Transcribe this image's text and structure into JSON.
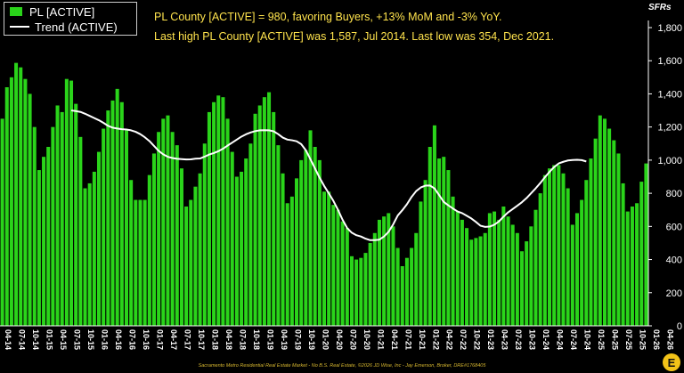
{
  "headline": {
    "line1": "PL County [ACTIVE] = 980, favoring Buyers, +13% MoM and -3% YoY.",
    "line2": "Last high PL County [ACTIVE] was 1,587, Jul 2014. Last low was 354, Dec 2021."
  },
  "legend": {
    "bar_label": "PL [ACTIVE]",
    "line_label": "Trend (ACTIVE)"
  },
  "unit_label": "SFRs",
  "footer": "Sacramento Metro Residential Real Estate Market - No B.S. Real Estate, ©2026 JD Wise, Inc - Jay Emerson, Broker, DRE#1768405",
  "logo_letter": "E",
  "colors": {
    "bar": "#2ad41a",
    "trend": "#ffffff",
    "headline": "#ffe34d",
    "background": "#000000"
  },
  "chart_data": {
    "type": "bar",
    "title": "",
    "xlabel": "",
    "ylabel": "SFRs",
    "ylim": [
      0,
      1800
    ],
    "yticks": [
      0,
      200,
      400,
      600,
      800,
      1000,
      1200,
      1400,
      1600,
      1800
    ],
    "ytick_labels": [
      "0",
      "200",
      "400",
      "600",
      "800",
      "1,000",
      "1,200",
      "1,400",
      "1,600",
      "1,800"
    ],
    "grid": false,
    "legend_position": "top-left",
    "x_tick_labels": [
      "04-14",
      "07-14",
      "10-14",
      "01-15",
      "04-15",
      "07-15",
      "10-15",
      "01-16",
      "04-16",
      "07-16",
      "10-16",
      "01-17",
      "04-17",
      "07-17",
      "10-17",
      "01-18",
      "04-18",
      "07-18",
      "10-18",
      "01-19",
      "04-19",
      "07-19",
      "10-19",
      "01-20",
      "04-20",
      "07-20",
      "10-20",
      "01-21",
      "04-21",
      "07-21",
      "10-21",
      "01-22",
      "04-22",
      "07-22",
      "10-22",
      "01-23",
      "04-23",
      "07-23",
      "10-23",
      "01-24",
      "04-24",
      "07-24",
      "10-24",
      "01-25",
      "04-25",
      "07-25",
      "10-25",
      "01-26",
      "04-26"
    ],
    "series": [
      {
        "name": "PL [ACTIVE]",
        "type": "bar",
        "values": [
          1250,
          1440,
          1500,
          1587,
          1560,
          1490,
          1400,
          1200,
          940,
          1020,
          1080,
          1200,
          1330,
          1290,
          1490,
          1480,
          1340,
          1140,
          830,
          860,
          930,
          1050,
          1190,
          1300,
          1360,
          1430,
          1350,
          1180,
          880,
          760,
          760,
          760,
          910,
          1040,
          1170,
          1250,
          1270,
          1170,
          1090,
          950,
          720,
          760,
          840,
          920,
          1100,
          1290,
          1350,
          1390,
          1380,
          1250,
          1050,
          900,
          930,
          1010,
          1100,
          1280,
          1330,
          1380,
          1410,
          1290,
          1090,
          920,
          740,
          780,
          890,
          1000,
          1060,
          1180,
          1080,
          1000,
          810,
          810,
          730,
          700,
          630,
          590,
          420,
          400,
          410,
          440,
          500,
          560,
          640,
          660,
          680,
          600,
          470,
          360,
          410,
          470,
          560,
          750,
          880,
          1080,
          1210,
          1010,
          1020,
          940,
          780,
          690,
          640,
          590,
          520,
          530,
          540,
          560,
          680,
          690,
          640,
          720,
          660,
          610,
          560,
          450,
          510,
          600,
          700,
          800,
          910,
          950,
          970,
          970,
          920,
          830,
          610,
          680,
          760,
          880,
          1010,
          1130,
          1270,
          1250,
          1190,
          1120,
          1040,
          860,
          690,
          720,
          740,
          870,
          980
        ]
      },
      {
        "name": "Trend (ACTIVE)",
        "type": "line",
        "start_index": 15,
        "values": [
          1300,
          1296,
          1291,
          1280,
          1267,
          1254,
          1241,
          1225,
          1207,
          1196,
          1191,
          1187,
          1185,
          1180,
          1171,
          1157,
          1138,
          1115,
          1086,
          1056,
          1035,
          1020,
          1013,
          1008,
          1006,
          1004,
          1005,
          1009,
          1010,
          1021,
          1034,
          1043,
          1054,
          1069,
          1088,
          1106,
          1124,
          1142,
          1156,
          1167,
          1175,
          1180,
          1181,
          1180,
          1174,
          1157,
          1136,
          1124,
          1120,
          1114,
          1097,
          1060,
          1006,
          950,
          894,
          844,
          800,
          754,
          700,
          640,
          590,
          562,
          547,
          539,
          526,
          517,
          517,
          520,
          539,
          567,
          612,
          666,
          698,
          734,
          778,
          813,
          835,
          846,
          847,
          829,
          789,
          748,
          727,
          708,
          690,
          680,
          664,
          648,
          627,
          604,
          597,
          599,
          610,
          630,
          659,
          685,
          705,
          725,
          746,
          771,
          800,
          830,
          862,
          897,
          929,
          958,
          980,
          990,
          998,
          1001,
          1002,
          1000,
          992
        ]
      }
    ]
  }
}
